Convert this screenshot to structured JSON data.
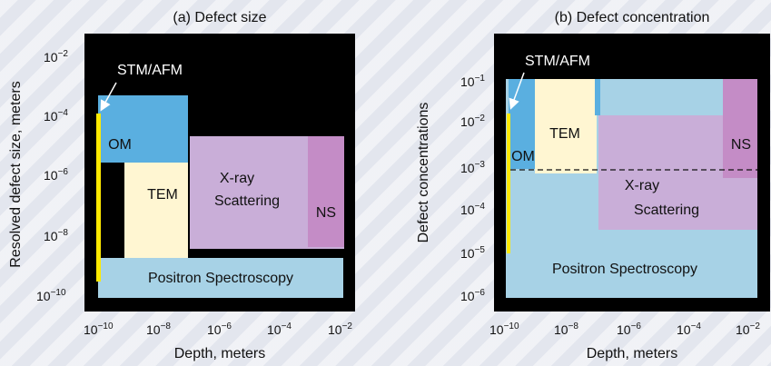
{
  "panel_a": {
    "title": "(a) Defect size",
    "xlabel": "Depth, meters",
    "ylabel": "Resolved defect size, meters",
    "x_ticks": [
      "10",
      "10",
      "10",
      "10",
      "10"
    ],
    "x_exps": [
      "−10",
      "−8",
      "−6",
      "−4",
      "−2"
    ],
    "y_ticks": [
      "10",
      "10",
      "10",
      "10",
      "10"
    ],
    "y_exps": [
      "−2",
      "−4",
      "−6",
      "−8",
      "−10"
    ],
    "callout": "STM/AFM",
    "regions": {
      "om": "OM",
      "tem": "TEM",
      "xray_line1": "X-ray",
      "xray_line2": "Scattering",
      "ns": "NS",
      "positron": "Positron Spectroscopy"
    }
  },
  "panel_b": {
    "title": "(b) Defect concentration",
    "xlabel": "Depth, meters",
    "ylabel": "Defect concentrations",
    "x_ticks": [
      "10",
      "10",
      "10",
      "10",
      "10"
    ],
    "x_exps": [
      "−10",
      "−8",
      "−6",
      "−4",
      "−2"
    ],
    "y_ticks": [
      "10",
      "10",
      "10",
      "10",
      "10",
      "10"
    ],
    "y_exps": [
      "−1",
      "−2",
      "−3",
      "−4",
      "−5",
      "−6"
    ],
    "callout": "STM/AFM",
    "regions": {
      "om": "OM",
      "tem": "TEM",
      "xray_line1": "X-ray",
      "xray_line2": "Scattering",
      "ns": "NS",
      "positron": "Positron Spectroscopy"
    }
  },
  "colors": {
    "plot_bg": "#000000",
    "om": "#5aafe0",
    "tem": "#fff6d2",
    "xray": "#c9aed8",
    "ns": "#c48cc6",
    "positron": "#a7d2e6",
    "stm": "#ffea00"
  }
}
